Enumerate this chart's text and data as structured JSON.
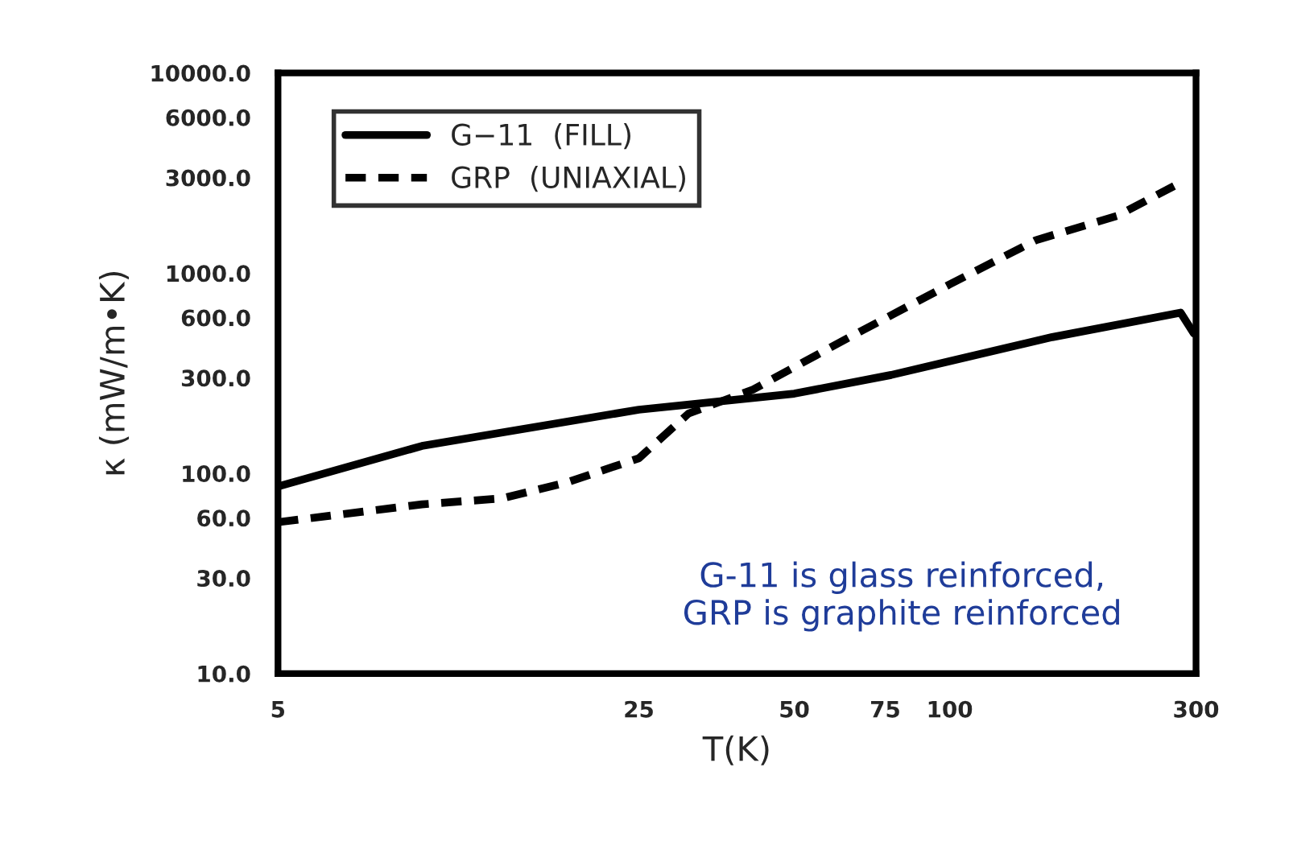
{
  "chart_data": {
    "type": "line",
    "xlabel": "T(K)",
    "ylabel": "κ (mW/m•K)",
    "log": "xy",
    "grid": false,
    "legend": "top left",
    "xlim": [
      5,
      300
    ],
    "ylim": [
      10,
      10000
    ],
    "xticks": [
      5,
      25,
      50,
      75,
      100,
      300
    ],
    "yticks": [
      {
        "value": 10,
        "label": "10.0"
      },
      {
        "value": 30,
        "label": "30.0"
      },
      {
        "value": 60,
        "label": "60.0"
      },
      {
        "value": 100,
        "label": "100.0"
      },
      {
        "value": 300,
        "label": "300.0"
      },
      {
        "value": 600,
        "label": "600.0"
      },
      {
        "value": 1000,
        "label": "1000.0"
      },
      {
        "value": 3000,
        "label": "3000.0"
      },
      {
        "value": 6000,
        "label": "6000.0"
      },
      {
        "value": 10000,
        "label": "10000.0"
      }
    ],
    "series": [
      {
        "name": "G−11  (FILL)",
        "color": "#000000",
        "line_style": "solid",
        "x": [
          5,
          9.5,
          25,
          50,
          77,
          100,
          158,
          280,
          297
        ],
        "values": [
          86,
          137,
          208,
          250,
          310,
          363,
          479,
          635,
          500
        ]
      },
      {
        "name": "GRP  (UNIAXIAL)",
        "color": "#000000",
        "line_style": "dashed",
        "x": [
          5,
          9.5,
          13.6,
          18.1,
          25,
          31.2,
          41.6,
          64,
          100,
          147,
          211,
          272
        ],
        "values": [
          57,
          70,
          75,
          90,
          119,
          199,
          262,
          479,
          879,
          1462,
          1932,
          2724
        ]
      }
    ],
    "annotations": [
      "G-11 is glass reinforced,\nGRP is graphite reinforced"
    ]
  }
}
